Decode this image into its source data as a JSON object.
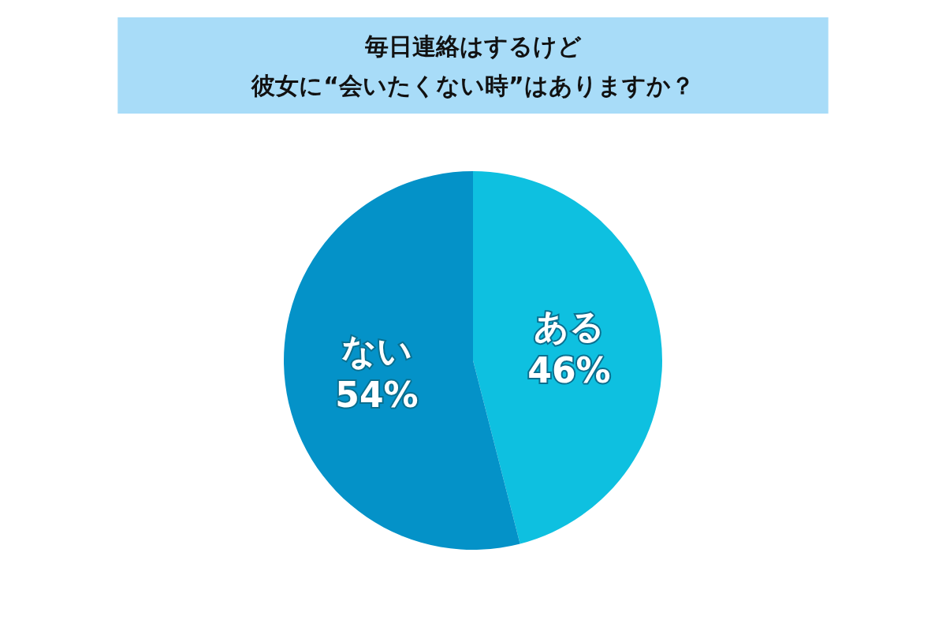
{
  "chart_data": {
    "type": "pie",
    "title": "毎日連絡はするけど",
    "subtitle": "彼女に“会いたくない時”はありますか？",
    "categories": [
      "ある",
      "ない"
    ],
    "values": [
      46,
      54
    ],
    "colors": [
      "#0ec0e0",
      "#0492c8"
    ],
    "value_labels": [
      "46%",
      "54%"
    ],
    "legend": false
  }
}
